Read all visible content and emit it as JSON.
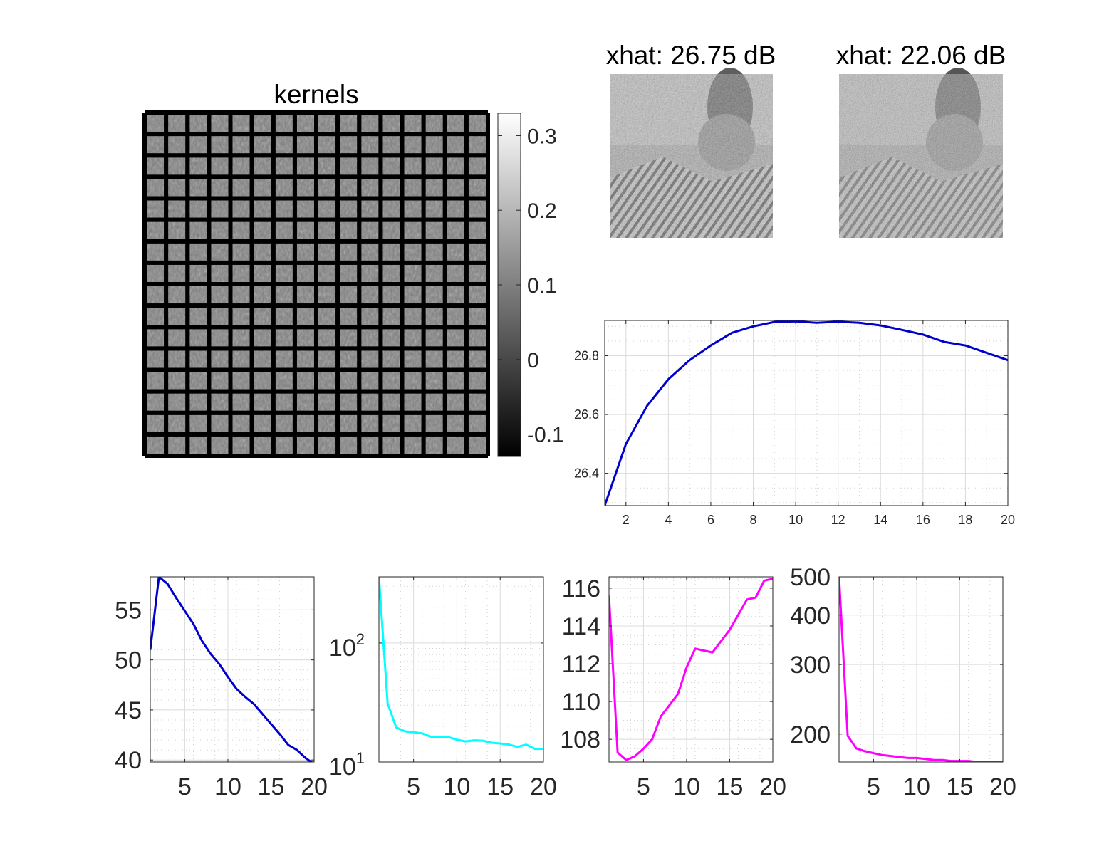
{
  "chart_data": [
    {
      "type": "heatmap",
      "title": "kernels",
      "grid": [
        16,
        16
      ],
      "colormap": "gray",
      "colorbar": {
        "ticks": [
          0.3,
          0.2,
          0.1,
          0,
          -0.1
        ],
        "tick_labels": [
          "0.3",
          "0.2",
          "0.1",
          "0",
          "-0.1"
        ],
        "range": [
          -0.13,
          0.33
        ]
      }
    },
    {
      "type": "image",
      "title": "xhat: 26.75 dB",
      "colormap": "gray"
    },
    {
      "type": "image",
      "title": "xhat: 22.06 dB",
      "colormap": "gray"
    },
    {
      "type": "line",
      "title": "",
      "color": "#0000cd",
      "xlim": [
        1,
        20
      ],
      "ylim": [
        26.29,
        26.92
      ],
      "x_ticks": [
        2,
        4,
        6,
        8,
        10,
        12,
        14,
        16,
        18,
        20
      ],
      "y_ticks": [
        26.4,
        26.6,
        26.8
      ],
      "y_tick_labels": [
        "26.4",
        "26.6",
        "26.8"
      ],
      "grid": true,
      "x": [
        1,
        2,
        3,
        4,
        5,
        6,
        7,
        8,
        9,
        10,
        11,
        12,
        13,
        14,
        15,
        16,
        17,
        18,
        19,
        20
      ],
      "values": [
        26.29,
        26.5,
        26.63,
        26.72,
        26.785,
        26.835,
        26.878,
        26.9,
        26.915,
        26.917,
        26.912,
        26.916,
        26.912,
        26.903,
        26.888,
        26.872,
        26.847,
        26.835,
        26.81,
        26.785
      ]
    },
    {
      "type": "line",
      "title": "",
      "color": "#0000cd",
      "xlim": [
        1,
        20
      ],
      "ylim": [
        39.8,
        58.3
      ],
      "x_ticks": [
        5,
        10,
        15,
        20
      ],
      "y_ticks": [
        40,
        45,
        50,
        55
      ],
      "y_tick_labels": [
        "40",
        "45",
        "50",
        "55"
      ],
      "grid": true,
      "x": [
        1,
        2,
        3,
        4,
        5,
        6,
        7,
        8,
        9,
        10,
        11,
        12,
        13,
        14,
        15,
        16,
        17,
        18,
        19,
        20
      ],
      "values": [
        51,
        58.3,
        57.6,
        56.2,
        54.9,
        53.6,
        51.9,
        50.6,
        49.6,
        48.3,
        47.1,
        46.3,
        45.6,
        44.6,
        43.6,
        42.6,
        41.5,
        41.0,
        40.2,
        39.6
      ]
    },
    {
      "type": "line",
      "title": "",
      "color": "#00ffff",
      "scale_y": "log",
      "xlim": [
        1,
        20
      ],
      "ylim": [
        10,
        360
      ],
      "x_ticks": [
        5,
        10,
        15,
        20
      ],
      "y_ticks": [
        10,
        100
      ],
      "y_tick_labels": [
        {
          "base": "10",
          "exp": "1"
        },
        {
          "base": "10",
          "exp": "2"
        }
      ],
      "grid": true,
      "x": [
        1,
        2,
        3,
        4,
        5,
        6,
        7,
        8,
        9,
        10,
        11,
        12,
        13,
        14,
        15,
        16,
        17,
        18,
        19,
        20
      ],
      "values": [
        360,
        31,
        19.5,
        18.1,
        17.8,
        17.4,
        16.3,
        16.3,
        16.2,
        15.4,
        14.9,
        15.2,
        15.1,
        14.5,
        14.3,
        14.0,
        13.4,
        14.0,
        12.9,
        12.9
      ]
    },
    {
      "type": "line",
      "title": "",
      "color": "#ff00ff",
      "xlim": [
        1,
        20
      ],
      "ylim": [
        106.8,
        116.6
      ],
      "x_ticks": [
        5,
        10,
        15,
        20
      ],
      "y_ticks": [
        108,
        110,
        112,
        114,
        116
      ],
      "y_tick_labels": [
        "108",
        "110",
        "112",
        "114",
        "116"
      ],
      "grid": true,
      "x": [
        1,
        2,
        3,
        4,
        5,
        6,
        7,
        8,
        9,
        10,
        11,
        12,
        13,
        14,
        15,
        16,
        17,
        18,
        19,
        20
      ],
      "values": [
        115.6,
        107.3,
        106.9,
        107.1,
        107.5,
        108.0,
        109.2,
        109.8,
        110.4,
        111.8,
        112.8,
        112.7,
        112.6,
        113.2,
        113.8,
        114.6,
        115.4,
        115.5,
        116.4,
        116.5
      ]
    },
    {
      "type": "line",
      "title": "",
      "color": "#ff00ff",
      "scale_y": "log",
      "xlim": [
        1,
        20
      ],
      "ylim": [
        170,
        500
      ],
      "x_ticks": [
        5,
        10,
        15,
        20
      ],
      "y_ticks": [
        200,
        300,
        400,
        500
      ],
      "y_tick_labels": [
        "200",
        "300",
        "400",
        "500"
      ],
      "grid": true,
      "x": [
        1,
        2,
        3,
        4,
        5,
        6,
        7,
        8,
        9,
        10,
        11,
        12,
        13,
        14,
        15,
        16,
        17,
        18,
        19,
        20
      ],
      "values": [
        500,
        198,
        184,
        181,
        179,
        177,
        176,
        175,
        174,
        174,
        173,
        172,
        172,
        171,
        171,
        171,
        170,
        170,
        170,
        170
      ]
    }
  ]
}
